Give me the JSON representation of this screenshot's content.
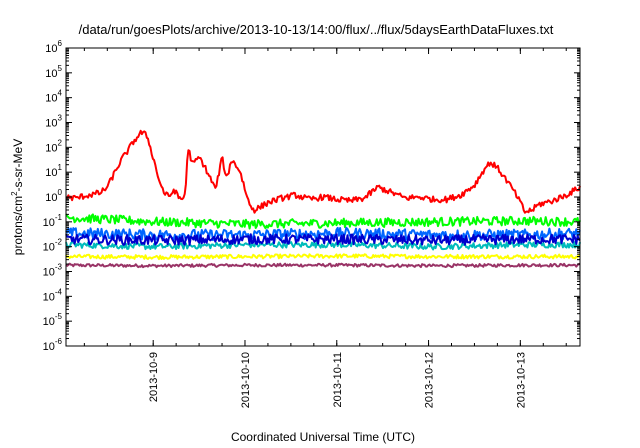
{
  "chart_data": {
    "type": "line",
    "title": "/data/run/goesPlots/archive/2013-10-13/14:00/flux/../flux/5daysEarthDataFluxes.txt",
    "xlabel": "Coordinated Universal Time (UTC)",
    "ylabel": {
      "base": "protons/cm",
      "sup": "2",
      "rest": "-s-sr-MeV"
    },
    "y_scale": "log",
    "ylim_exponents": [
      -6,
      6
    ],
    "y_ticks": [
      {
        "base": "10",
        "exp": "6"
      },
      {
        "base": "10",
        "exp": "5"
      },
      {
        "base": "10",
        "exp": "4"
      },
      {
        "base": "10",
        "exp": "3"
      },
      {
        "base": "10",
        "exp": "2"
      },
      {
        "base": "10",
        "exp": "1"
      },
      {
        "base": "10",
        "exp": "0"
      },
      {
        "base": "10",
        "exp": "-1"
      },
      {
        "base": "10",
        "exp": "-2"
      },
      {
        "base": "10",
        "exp": "-3"
      },
      {
        "base": "10",
        "exp": "-4"
      },
      {
        "base": "10",
        "exp": "-5"
      },
      {
        "base": "10",
        "exp": "-6"
      }
    ],
    "x_range_days": [
      "2013-10-08",
      "2013-10-13"
    ],
    "x_ticks": [
      "2013-10-9",
      "2013-10-10",
      "2013-10-11",
      "2013-10-12",
      "2013-10-13"
    ],
    "x_tick_days": [
      0.95,
      1.95,
      2.95,
      3.95,
      4.95
    ],
    "x_end_day": 5.6,
    "grid": false,
    "legend": "none",
    "series": [
      {
        "color": "#ff0000",
        "points": [
          [
            0.0,
            1.0
          ],
          [
            0.1,
            0.9
          ],
          [
            0.2,
            1.1
          ],
          [
            0.3,
            1.3
          ],
          [
            0.38,
            1.5
          ],
          [
            0.45,
            2.5
          ],
          [
            0.52,
            8
          ],
          [
            0.6,
            30
          ],
          [
            0.68,
            80
          ],
          [
            0.75,
            200
          ],
          [
            0.82,
            400
          ],
          [
            0.88,
            300
          ],
          [
            0.92,
            100
          ],
          [
            0.97,
            20
          ],
          [
            1.02,
            4
          ],
          [
            1.07,
            1.5
          ],
          [
            1.12,
            1.0
          ],
          [
            1.18,
            2.0
          ],
          [
            1.22,
            1.0
          ],
          [
            1.27,
            0.8
          ],
          [
            1.3,
            1.5
          ],
          [
            1.33,
            100
          ],
          [
            1.38,
            20
          ],
          [
            1.45,
            40
          ],
          [
            1.5,
            20
          ],
          [
            1.58,
            5
          ],
          [
            1.63,
            2
          ],
          [
            1.7,
            40
          ],
          [
            1.75,
            5
          ],
          [
            1.8,
            30
          ],
          [
            1.85,
            20
          ],
          [
            1.9,
            10
          ],
          [
            1.95,
            2
          ],
          [
            2.0,
            0.5
          ],
          [
            2.05,
            0.3
          ],
          [
            2.12,
            0.4
          ],
          [
            2.2,
            0.6
          ],
          [
            2.35,
            0.9
          ],
          [
            2.5,
            1.2
          ],
          [
            2.65,
            0.8
          ],
          [
            2.8,
            1.0
          ],
          [
            2.95,
            0.8
          ],
          [
            3.1,
            0.7
          ],
          [
            3.25,
            0.9
          ],
          [
            3.4,
            2.5
          ],
          [
            3.55,
            1.5
          ],
          [
            3.7,
            0.9
          ],
          [
            3.85,
            1.0
          ],
          [
            4.0,
            0.8
          ],
          [
            4.15,
            0.8
          ],
          [
            4.3,
            1.2
          ],
          [
            4.45,
            3
          ],
          [
            4.55,
            12
          ],
          [
            4.62,
            25
          ],
          [
            4.7,
            15
          ],
          [
            4.78,
            6
          ],
          [
            4.87,
            2
          ],
          [
            4.95,
            0.6
          ],
          [
            5.0,
            0.25
          ],
          [
            5.08,
            0.3
          ],
          [
            5.15,
            0.5
          ],
          [
            5.3,
            0.7
          ],
          [
            5.45,
            1.2
          ],
          [
            5.6,
            2.5
          ]
        ],
        "noise_decades": 0.12
      },
      {
        "color": "#00ff00",
        "points": [
          [
            0.0,
            0.15
          ],
          [
            1.0,
            0.1
          ],
          [
            2.0,
            0.08
          ],
          [
            3.0,
            0.09
          ],
          [
            4.0,
            0.1
          ],
          [
            5.0,
            0.11
          ],
          [
            5.6,
            0.1
          ]
        ],
        "noise_decades": 0.18
      },
      {
        "color": "#0066ff",
        "points": [
          [
            0.0,
            0.035
          ],
          [
            1.0,
            0.03
          ],
          [
            2.0,
            0.03
          ],
          [
            3.0,
            0.035
          ],
          [
            4.0,
            0.03
          ],
          [
            5.0,
            0.03
          ],
          [
            5.6,
            0.035
          ]
        ],
        "noise_decades": 0.22
      },
      {
        "color": "#0000cc",
        "points": [
          [
            0.0,
            0.02
          ],
          [
            1.0,
            0.018
          ],
          [
            2.0,
            0.02
          ],
          [
            3.0,
            0.02
          ],
          [
            4.0,
            0.018
          ],
          [
            5.0,
            0.02
          ],
          [
            5.6,
            0.02
          ]
        ],
        "noise_decades": 0.2
      },
      {
        "color": "#00bbbb",
        "points": [
          [
            0.0,
            0.012
          ],
          [
            1.0,
            0.01
          ],
          [
            2.0,
            0.012
          ],
          [
            3.0,
            0.012
          ],
          [
            4.0,
            0.01
          ],
          [
            5.0,
            0.012
          ],
          [
            5.6,
            0.012
          ]
        ],
        "noise_decades": 0.12
      },
      {
        "color": "#ffff00",
        "points": [
          [
            0.0,
            0.004
          ],
          [
            1.0,
            0.0038
          ],
          [
            2.0,
            0.004
          ],
          [
            3.0,
            0.0042
          ],
          [
            4.0,
            0.004
          ],
          [
            5.0,
            0.004
          ],
          [
            5.6,
            0.004
          ]
        ],
        "noise_decades": 0.08
      },
      {
        "color": "#993366",
        "points": [
          [
            0.0,
            0.0018
          ],
          [
            1.0,
            0.0017
          ],
          [
            2.0,
            0.0018
          ],
          [
            3.0,
            0.0018
          ],
          [
            4.0,
            0.0017
          ],
          [
            5.0,
            0.0018
          ],
          [
            5.6,
            0.0018
          ]
        ],
        "noise_decades": 0.06
      }
    ]
  }
}
